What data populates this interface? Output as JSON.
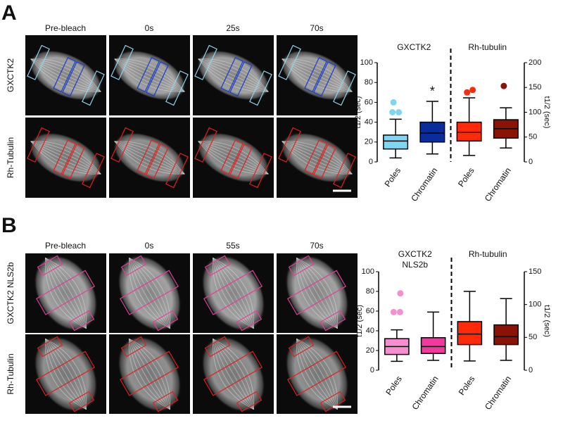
{
  "panels": [
    {
      "letter": "A",
      "columns": [
        "Pre-bleach",
        "0s",
        "25s",
        "70s"
      ],
      "rows": [
        "GXCTK2",
        "Rh-Tubulin"
      ]
    },
    {
      "letter": "B",
      "columns": [
        "Pre-bleach",
        "0s",
        "55s",
        "70s"
      ],
      "rows": [
        "GXCTK2 NLS2b",
        "Rh-Tubulin"
      ]
    }
  ],
  "chart_data": [
    {
      "type": "box",
      "groups": [
        {
          "lines": [
            "GXCTK2"
          ]
        },
        {
          "lines": [
            "Rh-tubulin"
          ]
        }
      ],
      "categories": [
        "Poles",
        "Chromatin",
        "Poles",
        "Chromatin"
      ],
      "boxes": [
        {
          "color": "#7fd6f2",
          "axis": "y",
          "stats": [
            4,
            13,
            21,
            27,
            43
          ],
          "fliers": [
            60,
            50,
            50
          ]
        },
        {
          "color": "#0a2d9c",
          "axis": "y",
          "stats": [
            8,
            20,
            29,
            40,
            61
          ],
          "fliers": [],
          "annotation": "*"
        },
        {
          "color": "#ff2a0a",
          "axis": "y2",
          "stats": [
            13,
            42,
            60,
            80,
            129
          ],
          "fliers": [
            140,
            145
          ]
        },
        {
          "color": "#8c1208",
          "axis": "y2",
          "stats": [
            28,
            48,
            67,
            85,
            109
          ],
          "fliers": [
            153
          ]
        }
      ],
      "y_label": "t1/2 (sec)",
      "y2_label": "t1/2 (sec)",
      "ylim": [
        0,
        100
      ],
      "yticks": [
        0,
        20,
        40,
        60,
        80,
        100
      ],
      "y2lim": [
        0,
        200
      ],
      "y2ticks": [
        0,
        50,
        100,
        150,
        200
      ]
    },
    {
      "type": "box",
      "groups": [
        {
          "lines": [
            "GXCTK2",
            "NLS2b"
          ]
        },
        {
          "lines": [
            "Rh-tubulin"
          ]
        }
      ],
      "categories": [
        "Poles",
        "Chromatin",
        "Poles",
        "Chromatin"
      ],
      "boxes": [
        {
          "color": "#f58fd0",
          "axis": "y",
          "stats": [
            9,
            16,
            24,
            32,
            41
          ],
          "fliers": [
            59,
            59,
            78
          ]
        },
        {
          "color": "#f0389f",
          "axis": "y",
          "stats": [
            10,
            17,
            24,
            33,
            59
          ],
          "fliers": []
        },
        {
          "color": "#ff2a0a",
          "axis": "y2",
          "stats": [
            14,
            39,
            55,
            74,
            120
          ],
          "fliers": []
        },
        {
          "color": "#8c1208",
          "axis": "y2",
          "stats": [
            15,
            39,
            51,
            69,
            109
          ],
          "fliers": []
        }
      ],
      "y_label": "t1/2 (sec)",
      "y2_label": "t1/2 (sec)",
      "ylim": [
        0,
        100
      ],
      "yticks": [
        0,
        20,
        40,
        60,
        80,
        100
      ],
      "y2lim": [
        0,
        150
      ],
      "y2ticks": [
        0,
        50,
        100,
        150
      ]
    }
  ]
}
